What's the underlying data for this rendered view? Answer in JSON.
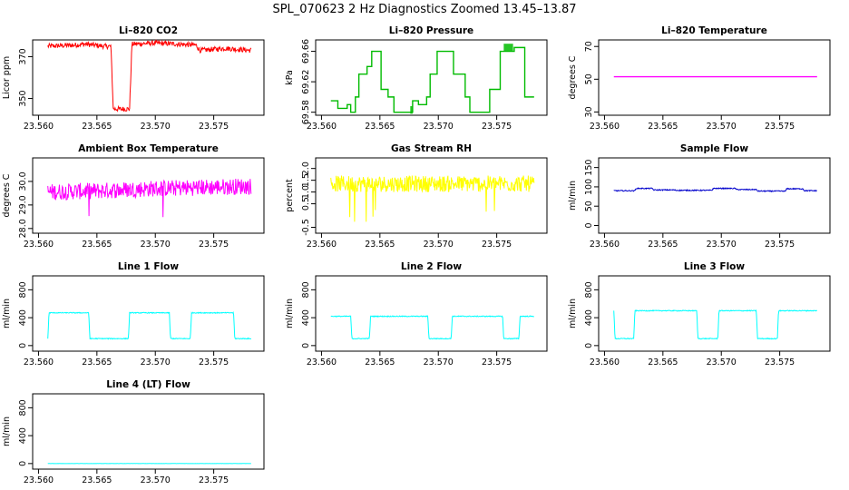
{
  "figure": {
    "title": "SPL_070623  2 Hz Diagnostics Zoomed 13.45–13.87"
  },
  "chart_data": [
    {
      "id": "co2",
      "type": "line",
      "title": "Li–820 CO2",
      "ylabel": "Licor ppm",
      "color": "#ff0000",
      "xlim": [
        23.5595,
        23.5793
      ],
      "ylim": [
        342,
        378
      ],
      "xticks": [
        "23.560",
        "23.565",
        "23.570",
        "23.575"
      ],
      "yticks": [
        "350",
        "370"
      ],
      "ytickvals": [
        350,
        370
      ],
      "x": [
        23.5608,
        23.563,
        23.564,
        23.5656,
        23.5662,
        23.5664,
        23.5678,
        23.568,
        23.57,
        23.572,
        23.5735,
        23.5738,
        23.576,
        23.5782
      ],
      "y": [
        375,
        375.5,
        376,
        375,
        375,
        345,
        345,
        376,
        376.5,
        376,
        375.5,
        373,
        374,
        373
      ],
      "noise": 1.2
    },
    {
      "id": "pressure",
      "type": "step",
      "title": "Li–820 Pressure",
      "ylabel": "kPa",
      "color": "#00bb00",
      "xlim": [
        23.5595,
        23.5793
      ],
      "ylim": [
        69.576,
        69.675
      ],
      "xticks": [
        "23.560",
        "23.565",
        "23.570",
        "23.575"
      ],
      "yticks": [
        "69.58",
        "69.62",
        "69.66"
      ],
      "ytickvals": [
        69.58,
        69.62,
        69.66
      ],
      "x": [
        23.5608,
        23.5614,
        23.5622,
        23.5625,
        23.5629,
        23.5632,
        23.5639,
        23.5643,
        23.5646,
        23.5651,
        23.5657,
        23.5662,
        23.5668,
        23.5675,
        23.5678,
        23.5683,
        23.569,
        23.5693,
        23.5699,
        23.5702,
        23.5705,
        23.5713,
        23.5723,
        23.5727,
        23.5733,
        23.5737,
        23.5744,
        23.5753,
        23.5765,
        23.5774,
        23.5782
      ],
      "y": [
        69.595,
        69.585,
        69.59,
        69.58,
        69.6,
        69.63,
        69.64,
        69.66,
        69.66,
        69.61,
        69.6,
        69.58,
        69.58,
        69.58,
        69.595,
        69.59,
        69.6,
        69.63,
        69.66,
        69.66,
        69.66,
        69.63,
        69.6,
        69.58,
        69.58,
        69.58,
        69.61,
        69.66,
        69.665,
        69.6,
        69.6
      ],
      "noise": 0
    },
    {
      "id": "temp",
      "type": "line",
      "title": "Li–820 Temperature",
      "ylabel": "degrees C",
      "color": "#ff00ff",
      "xlim": [
        23.5595,
        23.5793
      ],
      "ylim": [
        28,
        74
      ],
      "xticks": [
        "23.560",
        "23.565",
        "23.570",
        "23.575"
      ],
      "yticks": [
        "30",
        "50",
        "70"
      ],
      "ytickvals": [
        30,
        50,
        70
      ],
      "x": [
        23.5608,
        23.5782
      ],
      "y": [
        51.5,
        51.5
      ],
      "noise": 0
    },
    {
      "id": "ambient",
      "type": "line",
      "title": "Ambient Box Temperature",
      "ylabel": "degrees C",
      "color": "#ff00ff",
      "xlim": [
        23.5595,
        23.5793
      ],
      "ylim": [
        27.8,
        31
      ],
      "xticks": [
        "23.560",
        "23.565",
        "23.570",
        "23.575"
      ],
      "yticks": [
        "28.0",
        "29.0",
        "30.0"
      ],
      "ytickvals": [
        28,
        29,
        30
      ],
      "x": [
        23.5608,
        23.565,
        23.57,
        23.5782
      ],
      "y": [
        29.55,
        29.6,
        29.7,
        29.8
      ],
      "noise": 0.35
    },
    {
      "id": "rh",
      "type": "line",
      "title": "Gas Stream RH",
      "ylabel": "percent",
      "color": "#ffff00",
      "xlim": [
        23.5595,
        23.5793
      ],
      "ylim": [
        -0.75,
        2.45
      ],
      "xticks": [
        "23.560",
        "23.565",
        "23.570",
        "23.575"
      ],
      "yticks": [
        "-0.5",
        "0.5",
        "1.0",
        "1.5",
        "2.0"
      ],
      "ytickvals": [
        -0.5,
        0.5,
        1,
        1.5,
        2
      ],
      "x": [
        23.5608,
        23.5782
      ],
      "y": [
        1.35,
        1.35
      ],
      "noise": 0.35
    },
    {
      "id": "sample",
      "type": "line",
      "title": "Sample Flow",
      "ylabel": "ml/min",
      "color": "#0000cc",
      "xlim": [
        23.5595,
        23.5793
      ],
      "ylim": [
        -20,
        175
      ],
      "xticks": [
        "23.560",
        "23.565",
        "23.570",
        "23.575"
      ],
      "yticks": [
        "0",
        "50",
        "100",
        "150"
      ],
      "ytickvals": [
        0,
        50,
        100,
        150
      ],
      "x": [
        23.5608,
        23.5626,
        23.5627,
        23.5641,
        23.5642,
        23.566,
        23.5661,
        23.5692,
        23.5693,
        23.5712,
        23.5713,
        23.573,
        23.5731,
        23.5755,
        23.5756,
        23.577,
        23.5771,
        23.5782
      ],
      "y": [
        90,
        90,
        96,
        96,
        92,
        92,
        91,
        91,
        96,
        96,
        93,
        93,
        89,
        89,
        95,
        95,
        90,
        90
      ],
      "noise": 1.3
    },
    {
      "id": "line1",
      "type": "line",
      "title": "Line 1 Flow",
      "ylabel": "ml/min",
      "color": "#00ffff",
      "xlim": [
        23.5595,
        23.5793
      ],
      "ylim": [
        -80,
        1000
      ],
      "xticks": [
        "23.560",
        "23.565",
        "23.570",
        "23.575"
      ],
      "yticks": [
        "0",
        "400",
        "800"
      ],
      "ytickvals": [
        0,
        400,
        800
      ],
      "x": [
        23.5608,
        23.5609,
        23.5643,
        23.5644,
        23.5677,
        23.5678,
        23.5712,
        23.5713,
        23.573,
        23.5731,
        23.5767,
        23.5768,
        23.5782
      ],
      "y": [
        100,
        470,
        470,
        100,
        100,
        470,
        470,
        100,
        100,
        470,
        470,
        100,
        100
      ],
      "noise": 6
    },
    {
      "id": "line2",
      "type": "line",
      "title": "Line 2 Flow",
      "ylabel": "ml/min",
      "color": "#00ffff",
      "xlim": [
        23.5595,
        23.5793
      ],
      "ylim": [
        -80,
        1000
      ],
      "xticks": [
        "23.560",
        "23.565",
        "23.570",
        "23.575"
      ],
      "yticks": [
        "0",
        "400",
        "800"
      ],
      "ytickvals": [
        0,
        400,
        800
      ],
      "x": [
        23.5608,
        23.5625,
        23.5626,
        23.5641,
        23.5642,
        23.5691,
        23.5692,
        23.5711,
        23.5712,
        23.5755,
        23.5756,
        23.5769,
        23.577,
        23.5782
      ],
      "y": [
        420,
        420,
        100,
        100,
        420,
        420,
        100,
        100,
        420,
        420,
        100,
        100,
        420,
        420
      ],
      "noise": 6
    },
    {
      "id": "line3",
      "type": "line",
      "title": "Line 3 Flow",
      "ylabel": "ml/min",
      "color": "#00ffff",
      "xlim": [
        23.5595,
        23.5793
      ],
      "ylim": [
        -80,
        1000
      ],
      "xticks": [
        "23.560",
        "23.565",
        "23.570",
        "23.575"
      ],
      "yticks": [
        "0",
        "400",
        "800"
      ],
      "ytickvals": [
        0,
        400,
        800
      ],
      "x": [
        23.5608,
        23.5609,
        23.5625,
        23.5626,
        23.5679,
        23.568,
        23.5697,
        23.5698,
        23.573,
        23.5731,
        23.5748,
        23.5749,
        23.5782
      ],
      "y": [
        500,
        100,
        100,
        500,
        500,
        100,
        100,
        500,
        500,
        100,
        100,
        500,
        500
      ],
      "noise": 6
    },
    {
      "id": "line4",
      "type": "line",
      "title": "Line 4 (LT) Flow",
      "ylabel": "ml/min",
      "color": "#00ffff",
      "xlim": [
        23.5595,
        23.5793
      ],
      "ylim": [
        -80,
        1000
      ],
      "xticks": [
        "23.560",
        "23.565",
        "23.570",
        "23.575"
      ],
      "yticks": [
        "0",
        "400",
        "800"
      ],
      "ytickvals": [
        0,
        400,
        800
      ],
      "x": [
        23.5608,
        23.5782
      ],
      "y": [
        0,
        0
      ],
      "noise": 1
    }
  ]
}
